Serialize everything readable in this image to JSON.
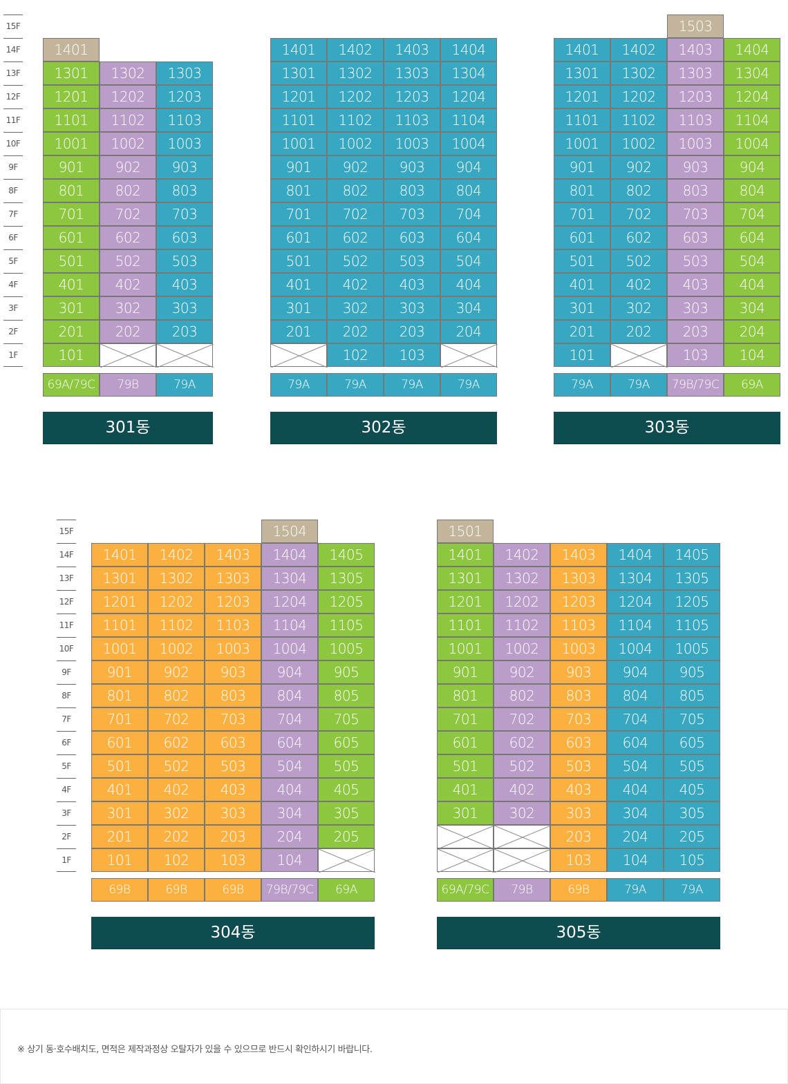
{
  "colors": {
    "green": "#8dc63f",
    "purple": "#bb9dc9",
    "teal": "#38a8c2",
    "orange": "#fbb040",
    "tan": "#c3b59c",
    "label_bar": "#0f4c4f"
  },
  "floor_labels": [
    "15F",
    "14F",
    "13F",
    "12F",
    "11F",
    "10F",
    "9F",
    "8F",
    "7F",
    "6F",
    "5F",
    "4F",
    "3F",
    "2F",
    "1F"
  ],
  "buildings": [
    {
      "name": "301동",
      "top_floor": 14,
      "column_colors": [
        "green",
        "purple",
        "teal"
      ],
      "tan_units": [
        "1401"
      ],
      "rows": [
        [
          "1401",
          "",
          ""
        ],
        [
          "1301",
          "1302",
          "1303"
        ],
        [
          "1201",
          "1202",
          "1203"
        ],
        [
          "1101",
          "1102",
          "1103"
        ],
        [
          "1001",
          "1002",
          "1003"
        ],
        [
          "901",
          "902",
          "903"
        ],
        [
          "801",
          "802",
          "803"
        ],
        [
          "701",
          "702",
          "703"
        ],
        [
          "601",
          "602",
          "603"
        ],
        [
          "501",
          "502",
          "503"
        ],
        [
          "401",
          "402",
          "403"
        ],
        [
          "301",
          "302",
          "303"
        ],
        [
          "201",
          "202",
          "203"
        ],
        [
          "101",
          "X",
          "X"
        ]
      ],
      "spec": [
        "69A/79C",
        "79B",
        "79A"
      ]
    },
    {
      "name": "302동",
      "top_floor": 14,
      "column_colors": [
        "teal",
        "teal",
        "teal",
        "teal"
      ],
      "tan_units": [],
      "rows": [
        [
          "1401",
          "1402",
          "1403",
          "1404"
        ],
        [
          "1301",
          "1302",
          "1303",
          "1304"
        ],
        [
          "1201",
          "1202",
          "1203",
          "1204"
        ],
        [
          "1101",
          "1102",
          "1103",
          "1104"
        ],
        [
          "1001",
          "1002",
          "1003",
          "1004"
        ],
        [
          "901",
          "902",
          "903",
          "904"
        ],
        [
          "801",
          "802",
          "803",
          "804"
        ],
        [
          "701",
          "702",
          "703",
          "704"
        ],
        [
          "601",
          "602",
          "603",
          "604"
        ],
        [
          "501",
          "502",
          "503",
          "504"
        ],
        [
          "401",
          "402",
          "403",
          "404"
        ],
        [
          "301",
          "302",
          "303",
          "304"
        ],
        [
          "201",
          "202",
          "203",
          "204"
        ],
        [
          "X",
          "102",
          "103",
          "X"
        ]
      ],
      "spec": [
        "79A",
        "79A",
        "79A",
        "79A"
      ]
    },
    {
      "name": "303동",
      "top_floor": 15,
      "column_colors": [
        "teal",
        "teal",
        "purple",
        "green"
      ],
      "tan_units": [
        "1503"
      ],
      "rows": [
        [
          "",
          "",
          "1503",
          ""
        ],
        [
          "1401",
          "1402",
          "1403",
          "1404"
        ],
        [
          "1301",
          "1302",
          "1303",
          "1304"
        ],
        [
          "1201",
          "1202",
          "1203",
          "1204"
        ],
        [
          "1101",
          "1102",
          "1103",
          "1104"
        ],
        [
          "1001",
          "1002",
          "1003",
          "1004"
        ],
        [
          "901",
          "902",
          "903",
          "904"
        ],
        [
          "801",
          "802",
          "803",
          "804"
        ],
        [
          "701",
          "702",
          "703",
          "704"
        ],
        [
          "601",
          "602",
          "603",
          "604"
        ],
        [
          "501",
          "502",
          "503",
          "504"
        ],
        [
          "401",
          "402",
          "403",
          "404"
        ],
        [
          "301",
          "302",
          "303",
          "304"
        ],
        [
          "201",
          "202",
          "203",
          "204"
        ],
        [
          "101",
          "X",
          "103",
          "104"
        ]
      ],
      "spec": [
        "79A",
        "79A",
        "79B/79C",
        "69A"
      ]
    },
    {
      "name": "304동",
      "top_floor": 15,
      "column_colors": [
        "orange",
        "orange",
        "orange",
        "purple",
        "green"
      ],
      "tan_units": [
        "1504"
      ],
      "rows": [
        [
          "",
          "",
          "",
          "1504",
          ""
        ],
        [
          "1401",
          "1402",
          "1403",
          "1404",
          "1405"
        ],
        [
          "1301",
          "1302",
          "1303",
          "1304",
          "1305"
        ],
        [
          "1201",
          "1202",
          "1203",
          "1204",
          "1205"
        ],
        [
          "1101",
          "1102",
          "1103",
          "1104",
          "1105"
        ],
        [
          "1001",
          "1002",
          "1003",
          "1004",
          "1005"
        ],
        [
          "901",
          "902",
          "903",
          "904",
          "905"
        ],
        [
          "801",
          "802",
          "803",
          "804",
          "805"
        ],
        [
          "701",
          "702",
          "703",
          "704",
          "705"
        ],
        [
          "601",
          "602",
          "603",
          "604",
          "605"
        ],
        [
          "501",
          "502",
          "503",
          "504",
          "505"
        ],
        [
          "401",
          "402",
          "403",
          "404",
          "405"
        ],
        [
          "301",
          "302",
          "303",
          "304",
          "305"
        ],
        [
          "201",
          "202",
          "203",
          "204",
          "205"
        ],
        [
          "101",
          "102",
          "103",
          "104",
          "X"
        ]
      ],
      "spec": [
        "69B",
        "69B",
        "69B",
        "79B/79C",
        "69A"
      ]
    },
    {
      "name": "305동",
      "top_floor": 15,
      "column_colors": [
        "green",
        "purple",
        "orange",
        "teal",
        "teal"
      ],
      "tan_units": [
        "1501"
      ],
      "rows": [
        [
          "1501",
          "",
          "",
          "",
          ""
        ],
        [
          "1401",
          "1402",
          "1403",
          "1404",
          "1405"
        ],
        [
          "1301",
          "1302",
          "1303",
          "1304",
          "1305"
        ],
        [
          "1201",
          "1202",
          "1203",
          "1204",
          "1205"
        ],
        [
          "1101",
          "1102",
          "1103",
          "1104",
          "1105"
        ],
        [
          "1001",
          "1002",
          "1003",
          "1004",
          "1005"
        ],
        [
          "901",
          "902",
          "903",
          "904",
          "905"
        ],
        [
          "801",
          "802",
          "803",
          "804",
          "805"
        ],
        [
          "701",
          "702",
          "703",
          "704",
          "705"
        ],
        [
          "601",
          "602",
          "603",
          "604",
          "605"
        ],
        [
          "501",
          "502",
          "503",
          "504",
          "505"
        ],
        [
          "401",
          "402",
          "403",
          "404",
          "405"
        ],
        [
          "301",
          "302",
          "303",
          "304",
          "305"
        ],
        [
          "X",
          "X",
          "203",
          "204",
          "205"
        ],
        [
          "X",
          "X",
          "103",
          "104",
          "105"
        ]
      ],
      "spec": [
        "69A/79C",
        "79B",
        "69B",
        "79A",
        "79A"
      ]
    }
  ],
  "footer": {
    "note": "※ 상기 동·호수배치도, 면적은 제작과정상 오탈자가 있을 수 있으므로 반드시 확인하시기 바랍니다."
  }
}
